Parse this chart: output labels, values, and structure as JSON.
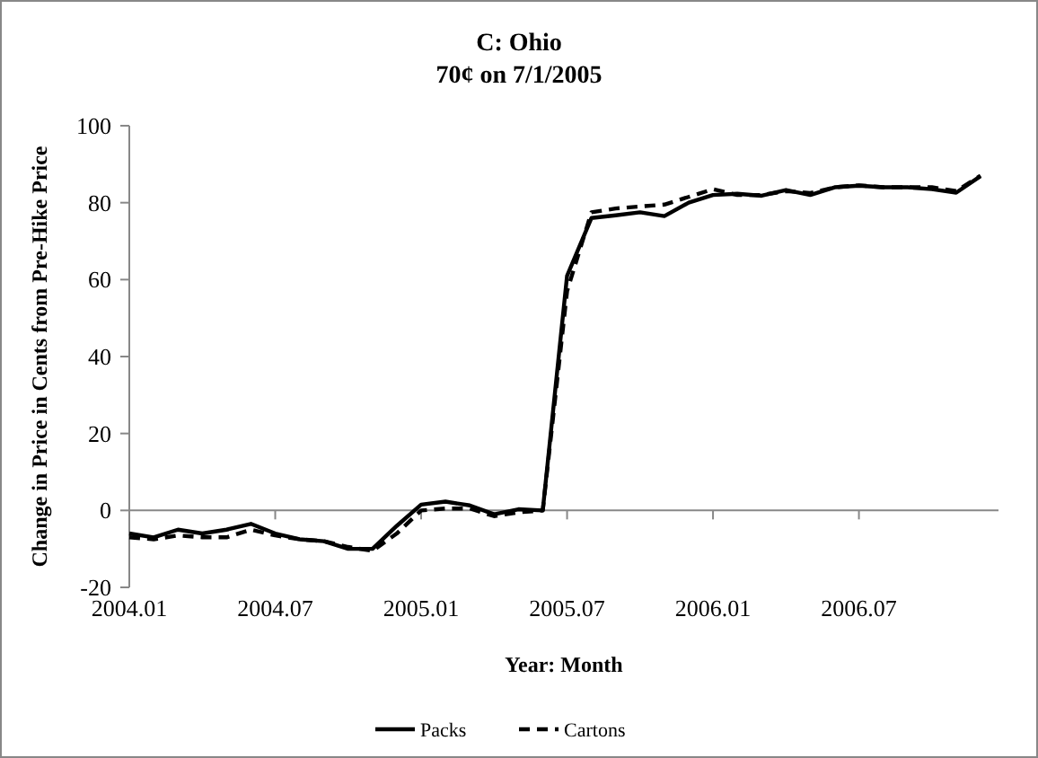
{
  "chart_data": {
    "type": "line",
    "title": "C:  Ohio",
    "subtitle": "70¢ on 7/1/2005",
    "xlabel": "Year: Month",
    "ylabel": "Change in Price in Cents from Pre-Hike Price",
    "categories": [
      "2004.01",
      null,
      null,
      null,
      null,
      null,
      "2004.07",
      null,
      null,
      null,
      null,
      null,
      "2005.01",
      null,
      null,
      null,
      null,
      null,
      "2005.07",
      null,
      null,
      null,
      null,
      null,
      "2006.01",
      null,
      null,
      null,
      null,
      null,
      "2006.07",
      null,
      null,
      null,
      null,
      null
    ],
    "series": [
      {
        "name": "Packs",
        "color": "#000000",
        "line_style": "solid",
        "values": [
          -6,
          -7,
          -5,
          -6,
          -5,
          -3.5,
          -6,
          -7.5,
          -8,
          -10,
          -10,
          -4,
          1.5,
          2.3,
          1.3,
          -1,
          0.3,
          0,
          61,
          76,
          76.7,
          77.5,
          76.5,
          80,
          82,
          82.3,
          81.8,
          83.3,
          82,
          84,
          84.4,
          84,
          84,
          83.5,
          82.6,
          86.9
        ]
      },
      {
        "name": "Cartons",
        "color": "#000000",
        "line_style": "dashed",
        "values": [
          -7,
          -7.5,
          -6.5,
          -7,
          -7,
          -5,
          -6.5,
          -7.5,
          -8,
          -9.5,
          -10.5,
          -6,
          0,
          0.5,
          0.5,
          -1.5,
          -0.5,
          0,
          57,
          77.5,
          78.5,
          79,
          79.5,
          81.5,
          83.5,
          82,
          82,
          83,
          82.5,
          84,
          84.5,
          84,
          84,
          84,
          83,
          87
        ]
      }
    ],
    "ylim": [
      -20,
      100
    ],
    "yticks": [
      -20,
      0,
      20,
      40,
      60,
      80,
      100
    ],
    "grid": false,
    "ref_lines": [
      {
        "axis": "y",
        "value": 0,
        "color": "#888888"
      }
    ],
    "legend": "bottom",
    "marker": "none"
  }
}
